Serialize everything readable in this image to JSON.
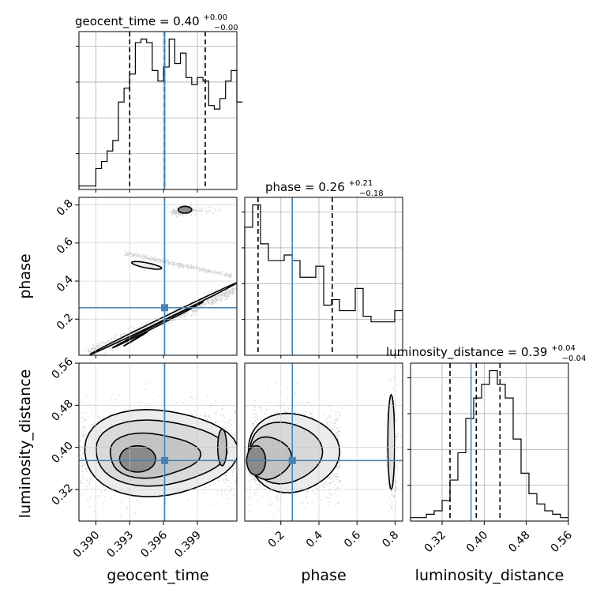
{
  "chart_data": {
    "type": "corner",
    "parameters": [
      "geocent_time",
      "phase",
      "luminosity_distance"
    ],
    "titles": [
      {
        "param": "geocent_time",
        "text": "geocent_time = 0.40",
        "median": 0.4,
        "plus": "+0.00",
        "minus": "−0.00"
      },
      {
        "param": "phase",
        "text": "phase = 0.26",
        "median": 0.26,
        "plus": "+0.21",
        "minus": "−0.18"
      },
      {
        "param": "luminosity_distance",
        "text": "luminosity_distance = 0.39",
        "median": 0.39,
        "plus": "+0.04",
        "minus": "−0.04"
      }
    ],
    "axis_labels": {
      "x": [
        "geocent_time",
        "phase",
        "luminosity_distance"
      ],
      "y": [
        "phase",
        "luminosity_distance"
      ]
    },
    "ranges": {
      "geocent_time": [
        0.3885,
        0.4025
      ],
      "phase": [
        0.01,
        0.84
      ],
      "luminosity_distance": [
        0.26,
        0.56
      ]
    },
    "ticks": {
      "geocent_time": {
        "values": [
          0.39,
          0.393,
          0.396,
          0.399
        ],
        "labels": [
          "0.390",
          "0.393",
          "0.396",
          "0.399"
        ]
      },
      "phase": {
        "values": [
          0.2,
          0.4,
          0.6,
          0.8
        ],
        "labels": [
          "0.2",
          "0.4",
          "0.6",
          "0.8"
        ]
      },
      "luminosity_distance": {
        "values": [
          0.32,
          0.4,
          0.48,
          0.56
        ],
        "labels": [
          "0.32",
          "0.40",
          "0.48",
          "0.56"
        ]
      }
    },
    "truths": {
      "geocent_time": 0.3961,
      "phase": 0.26,
      "luminosity_distance": 0.375
    },
    "quantiles": {
      "geocent_time": [
        0.393,
        0.3961,
        0.3997
      ],
      "phase": [
        0.08,
        0.26,
        0.47
      ],
      "luminosity_distance": [
        0.335,
        0.385,
        0.43
      ]
    },
    "histograms": {
      "geocent_time": {
        "edges_start": 0.3885,
        "bin_width": 0.0005,
        "counts": [
          1,
          1,
          1,
          6,
          8,
          11,
          14,
          25,
          29,
          33,
          42,
          43,
          42,
          34,
          31,
          35,
          43,
          36,
          39,
          32,
          30,
          32,
          31,
          24,
          23,
          26,
          31,
          34,
          25
        ]
      },
      "phase": {
        "edges_start": 0.01,
        "bin_width": 0.0415,
        "counts": [
          23,
          27,
          20,
          17,
          17,
          18,
          17,
          14,
          14,
          16,
          9,
          10,
          8,
          8,
          12,
          7,
          6,
          6,
          6,
          8
        ]
      },
      "luminosity_distance": {
        "edges_start": 0.26,
        "bin_width": 0.015,
        "counts": [
          0.5,
          0.5,
          1,
          1.5,
          3,
          6,
          10,
          15,
          18,
          20,
          22,
          20,
          18,
          12,
          7,
          4,
          2.5,
          1.5,
          1,
          0.5
        ]
      }
    },
    "grid": true
  }
}
